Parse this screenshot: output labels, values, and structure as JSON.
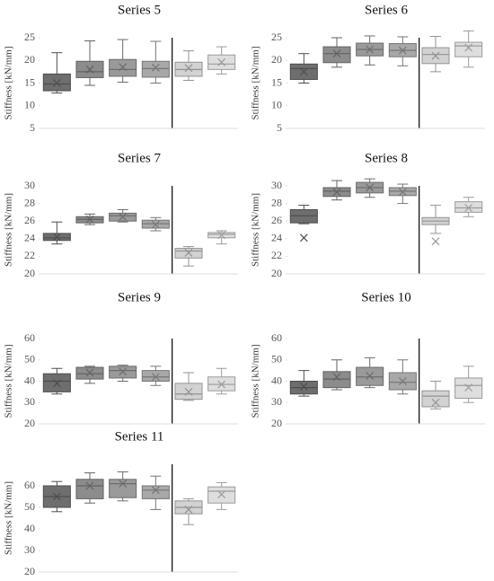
{
  "chart_data": [
    {
      "type": "box",
      "title": "Series 5",
      "ylabel": "Stiffness [kN/mm]",
      "ylim": [
        5,
        25
      ],
      "yticks": [
        5,
        10,
        15,
        20,
        25
      ],
      "divider_after": 4,
      "colors": [
        "#6e6e6e",
        "#8c8c8c",
        "#9a9a9a",
        "#a8a8a8",
        "#d2d2d2",
        "#dedede"
      ],
      "boxes": [
        {
          "min": 12.8,
          "q1": 13.3,
          "median": 14.8,
          "q3": 17,
          "max": 21.7,
          "mean": 15
        },
        {
          "min": 14.5,
          "q1": 16.2,
          "median": 17.5,
          "q3": 19.8,
          "max": 24.3,
          "mean": 18
        },
        {
          "min": 15.2,
          "q1": 16.5,
          "median": 18,
          "q3": 20.2,
          "max": 24.6,
          "mean": 18.5
        },
        {
          "min": 15,
          "q1": 16.3,
          "median": 18.2,
          "q3": 19.8,
          "max": 24.2,
          "mean": 18.4
        },
        {
          "min": 15.6,
          "q1": 16.5,
          "median": 18,
          "q3": 19.6,
          "max": 22.1,
          "mean": 18.3
        },
        {
          "min": 17,
          "q1": 18,
          "median": 19.2,
          "q3": 21.2,
          "max": 23,
          "mean": 19.6
        }
      ]
    },
    {
      "type": "box",
      "title": "Series 6",
      "ylabel": "Stiffness [kN/mm]",
      "ylim": [
        5,
        25
      ],
      "yticks": [
        5,
        10,
        15,
        20,
        25
      ],
      "divider_after": 4,
      "colors": [
        "#6e6e6e",
        "#8c8c8c",
        "#9a9a9a",
        "#a8a8a8",
        "#d2d2d2",
        "#dedede"
      ],
      "boxes": [
        {
          "min": 15,
          "q1": 15.8,
          "median": 18.2,
          "q3": 19.2,
          "max": 21.5,
          "mean": 17.5
        },
        {
          "min": 18.5,
          "q1": 19.5,
          "median": 21.5,
          "q3": 23,
          "max": 25,
          "mean": 21.5
        },
        {
          "min": 19,
          "q1": 21,
          "median": 22.4,
          "q3": 23.8,
          "max": 25.4,
          "mean": 22.4
        },
        {
          "min": 18.8,
          "q1": 20.8,
          "median": 22.2,
          "q3": 23.7,
          "max": 25.2,
          "mean": 22.2
        },
        {
          "min": 17.5,
          "q1": 19.3,
          "median": 21.3,
          "q3": 22.8,
          "max": 25.3,
          "mean": 21
        },
        {
          "min": 18.5,
          "q1": 20.8,
          "median": 23.2,
          "q3": 24,
          "max": 26.5,
          "mean": 22.8
        }
      ]
    },
    {
      "type": "box",
      "title": "Series 7",
      "ylabel": "Stiffness [kN/mm]",
      "ylim": [
        20,
        30
      ],
      "yticks": [
        20,
        22,
        24,
        26,
        28,
        30
      ],
      "divider_after": 4,
      "colors": [
        "#6e6e6e",
        "#8c8c8c",
        "#9a9a9a",
        "#a8a8a8",
        "#d2d2d2",
        "#dedede"
      ],
      "boxes": [
        {
          "min": 23.4,
          "q1": 23.8,
          "median": 24.1,
          "q3": 24.6,
          "max": 25.9,
          "mean": 24.2
        },
        {
          "min": 25.6,
          "q1": 25.8,
          "median": 26.2,
          "q3": 26.5,
          "max": 26.8,
          "mean": 26.2
        },
        {
          "min": 25.9,
          "q1": 26,
          "median": 26.6,
          "q3": 26.9,
          "max": 27.3,
          "mean": 26.5
        },
        {
          "min": 24.9,
          "q1": 25.2,
          "median": 25.7,
          "q3": 26.1,
          "max": 26.4,
          "mean": 25.6
        },
        {
          "min": 20.9,
          "q1": 21.8,
          "median": 22.6,
          "q3": 22.9,
          "max": 23.1,
          "mean": 22.4
        },
        {
          "min": 23.4,
          "q1": 24.1,
          "median": 24.5,
          "q3": 24.7,
          "max": 24.9,
          "mean": 24.4
        }
      ]
    },
    {
      "type": "box",
      "title": "Series 8",
      "ylabel": "Stiffness [kN/mm]",
      "ylim": [
        20,
        30
      ],
      "yticks": [
        20,
        22,
        24,
        26,
        28,
        30
      ],
      "divider_after": 4,
      "colors": [
        "#6e6e6e",
        "#8c8c8c",
        "#9a9a9a",
        "#a8a8a8",
        "#d2d2d2",
        "#dedede"
      ],
      "boxes": [
        {
          "min": 25.7,
          "q1": 25.8,
          "median": 26.6,
          "q3": 27.3,
          "max": 27.8,
          "mean": 24.1
        },
        {
          "min": 28.4,
          "q1": 28.8,
          "median": 29.4,
          "q3": 29.8,
          "max": 30.6,
          "mean": 29.3
        },
        {
          "min": 28.7,
          "q1": 29.2,
          "median": 29.8,
          "q3": 30.4,
          "max": 30.8,
          "mean": 29.8
        },
        {
          "min": 28,
          "q1": 28.9,
          "median": 29.4,
          "q3": 29.8,
          "max": 30.2,
          "mean": 29.3
        },
        {
          "min": 24.6,
          "q1": 25.6,
          "median": 26,
          "q3": 26.4,
          "max": 27.8,
          "mean": 23.7
        },
        {
          "min": 26.5,
          "q1": 27,
          "median": 27.5,
          "q3": 28.2,
          "max": 28.7,
          "mean": 27.5
        }
      ]
    },
    {
      "type": "box",
      "title": "Series 9",
      "ylabel": "Stiffness [kN/mm]",
      "ylim": [
        20,
        60
      ],
      "yticks": [
        20,
        30,
        40,
        50,
        60
      ],
      "divider_after": 4,
      "colors": [
        "#6e6e6e",
        "#8c8c8c",
        "#9a9a9a",
        "#a8a8a8",
        "#d2d2d2",
        "#dedede"
      ],
      "boxes": [
        {
          "min": 34,
          "q1": 35,
          "median": 40,
          "q3": 43.5,
          "max": 46,
          "mean": 39
        },
        {
          "min": 39,
          "q1": 41,
          "median": 43.5,
          "q3": 46.5,
          "max": 47,
          "mean": 44
        },
        {
          "min": 40,
          "q1": 41.5,
          "median": 45,
          "q3": 47,
          "max": 47.5,
          "mean": 44.5
        },
        {
          "min": 38,
          "q1": 40,
          "median": 42,
          "q3": 45,
          "max": 47,
          "mean": 42
        },
        {
          "min": 31,
          "q1": 31.5,
          "median": 34,
          "q3": 39,
          "max": 44,
          "mean": 35
        },
        {
          "min": 34,
          "q1": 35.5,
          "median": 38.5,
          "q3": 42,
          "max": 46,
          "mean": 38.5
        }
      ]
    },
    {
      "type": "box",
      "title": "Series 10",
      "ylabel": "Stiffness [kN/mm]",
      "ylim": [
        20,
        60
      ],
      "yticks": [
        20,
        30,
        40,
        50,
        60
      ],
      "divider_after": 4,
      "colors": [
        "#6e6e6e",
        "#8c8c8c",
        "#9a9a9a",
        "#a8a8a8",
        "#d2d2d2",
        "#dedede"
      ],
      "boxes": [
        {
          "min": 33,
          "q1": 34,
          "median": 37,
          "q3": 40,
          "max": 45,
          "mean": 37.5
        },
        {
          "min": 36,
          "q1": 37,
          "median": 41,
          "q3": 44.5,
          "max": 50,
          "mean": 42
        },
        {
          "min": 37,
          "q1": 38,
          "median": 42,
          "q3": 46.5,
          "max": 51,
          "mean": 42.5
        },
        {
          "min": 34,
          "q1": 36,
          "median": 39.5,
          "q3": 44,
          "max": 50,
          "mean": 40
        },
        {
          "min": 27,
          "q1": 28,
          "median": 33,
          "q3": 35.5,
          "max": 40,
          "mean": 30
        },
        {
          "min": 30,
          "q1": 32,
          "median": 38,
          "q3": 41.5,
          "max": 47,
          "mean": 37
        }
      ]
    },
    {
      "type": "box",
      "title": "Series 11",
      "ylabel": "Stiffness [kN/mm]",
      "ylim": [
        20,
        70
      ],
      "yticks": [
        20,
        30,
        40,
        50,
        60
      ],
      "divider_after": 4,
      "colors": [
        "#6e6e6e",
        "#8c8c8c",
        "#9a9a9a",
        "#a8a8a8",
        "#d2d2d2",
        "#dedede"
      ],
      "boxes": [
        {
          "min": 48,
          "q1": 50,
          "median": 55,
          "q3": 60,
          "max": 62,
          "mean": 55
        },
        {
          "min": 52,
          "q1": 54,
          "median": 60,
          "q3": 63,
          "max": 66,
          "mean": 60
        },
        {
          "min": 53,
          "q1": 54.5,
          "median": 61,
          "q3": 63,
          "max": 66.5,
          "mean": 61
        },
        {
          "min": 49,
          "q1": 54,
          "median": 58,
          "q3": 60,
          "max": 64.5,
          "mean": 58
        },
        {
          "min": 42,
          "q1": 47,
          "median": 50,
          "q3": 53,
          "max": 54,
          "mean": 49
        },
        {
          "min": 49,
          "q1": 52,
          "median": 57.5,
          "q3": 59.5,
          "max": 61.5,
          "mean": 56
        }
      ]
    }
  ]
}
